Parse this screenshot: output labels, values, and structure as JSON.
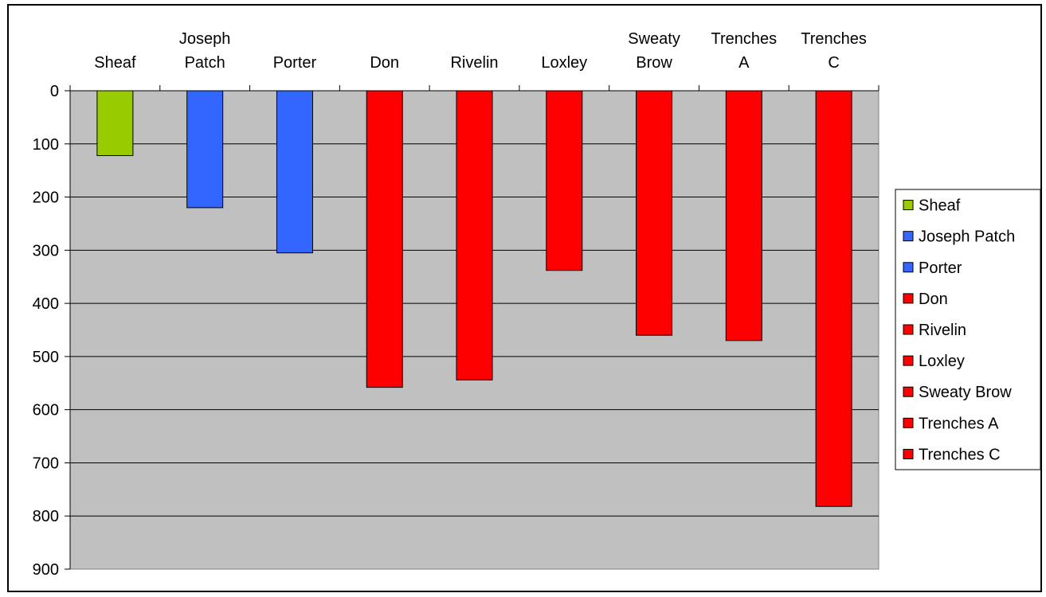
{
  "chart_data": {
    "type": "bar",
    "orientation": "inverted-vertical",
    "categories": [
      [
        "Sheaf"
      ],
      [
        "Joseph",
        "Patch"
      ],
      [
        "Porter"
      ],
      [
        "Don"
      ],
      [
        "Rivelin"
      ],
      [
        "Loxley"
      ],
      [
        "Sweaty",
        "Brow"
      ],
      [
        "Trenches",
        "A"
      ],
      [
        "Trenches",
        "C"
      ]
    ],
    "values": [
      122,
      220,
      305,
      558,
      544,
      338,
      460,
      470,
      782
    ],
    "colors": [
      "#99cc00",
      "#3366ff",
      "#3366ff",
      "#ff0000",
      "#ff0000",
      "#ff0000",
      "#ff0000",
      "#ff0000",
      "#ff0000"
    ],
    "plot_background": "#c0c0c0",
    "ylim": [
      0,
      900
    ],
    "ytick_step": 100,
    "y_axis_reversed": true,
    "x_labels_position": "top",
    "grid": true,
    "legend": {
      "position": "right",
      "entries": [
        "Sheaf",
        "Joseph Patch",
        "Porter",
        "Don",
        "Rivelin",
        "Loxley",
        "Sweaty Brow",
        "Trenches A",
        "Trenches C"
      ]
    },
    "title": "",
    "xlabel": "",
    "ylabel": ""
  }
}
